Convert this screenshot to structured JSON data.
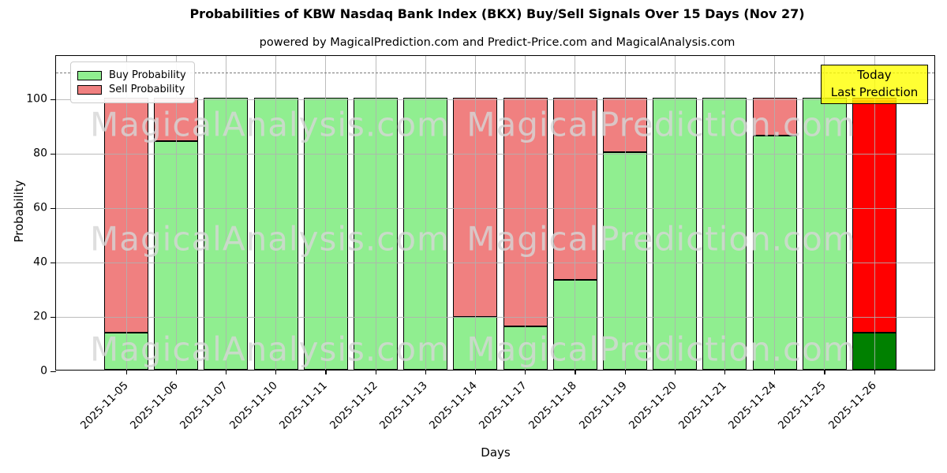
{
  "title": "Probabilities of KBW Nasdaq Bank Index (BKX) Buy/Sell Signals Over 15 Days (Nov 27)",
  "subtitle": "powered by MagicalPrediction.com and Predict-Price.com and MagicalAnalysis.com",
  "legend": {
    "items": [
      {
        "label": "Buy Probability",
        "color": "#90EE90"
      },
      {
        "label": "Sell Probability",
        "color": "#F08080"
      }
    ]
  },
  "annotation_box": {
    "line1": "Today",
    "line2": "Last Prediction",
    "bg_color": "#FFFF00"
  },
  "watermarks": {
    "left_text": "MagicalAnalysis.com",
    "right_text": "MagicalPrediction.com"
  },
  "axes": {
    "xlabel": "Days",
    "ylabel": "Probability",
    "yticks": [
      0,
      20,
      40,
      60,
      80,
      100
    ]
  },
  "chart_data": {
    "type": "bar",
    "stacked": true,
    "title": "Probabilities of KBW Nasdaq Bank Index (BKX) Buy/Sell Signals Over 15 Days (Nov 27)",
    "xlabel": "Days",
    "ylabel": "Probability",
    "ylim": [
      0,
      116
    ],
    "grid": true,
    "legend_position": "upper left",
    "dashed_line_y": 110,
    "categories": [
      "2025-11-05",
      "2025-11-06",
      "2025-11-07",
      "2025-11-10",
      "2025-11-11",
      "2025-11-12",
      "2025-11-13",
      "2025-11-14",
      "2025-11-17",
      "2025-11-18",
      "2025-11-19",
      "2025-11-20",
      "2025-11-21",
      "2025-11-24",
      "2025-11-25",
      "2025-11-26"
    ],
    "series": [
      {
        "name": "Buy Probability",
        "color": "#90EE90",
        "values": [
          13.5,
          84,
          100,
          100,
          100,
          100,
          100,
          19.5,
          16,
          33,
          80,
          100,
          100,
          86,
          100,
          13.5
        ]
      },
      {
        "name": "Sell Probability",
        "color": "#F08080",
        "values": [
          86.5,
          16,
          0,
          0,
          0,
          0,
          0,
          80.5,
          84,
          67,
          20,
          0,
          0,
          14,
          0,
          86.5
        ]
      }
    ],
    "last_bar_colors": {
      "buy": "#008000",
      "sell": "#FF0000"
    },
    "bar_edge_color": "#000000"
  }
}
